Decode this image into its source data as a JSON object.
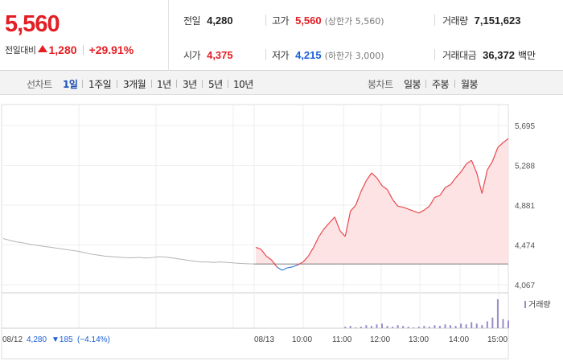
{
  "header": {
    "price": "5,560",
    "change_label": "전일대비",
    "change_value": "1,280",
    "change_rate": "+29.91%",
    "stats": {
      "prev_close": {
        "label": "전일",
        "value": "4,280"
      },
      "high": {
        "label": "고가",
        "value": "5,560",
        "sub": "(상한가 5,560)"
      },
      "volume": {
        "label": "거래량",
        "value": "7,151,623"
      },
      "open": {
        "label": "시가",
        "value": "4,375"
      },
      "low": {
        "label": "저가",
        "value": "4,215",
        "sub": "(하한가 3,000)"
      },
      "amount": {
        "label": "거래대금",
        "value": "36,372",
        "unit": "백만"
      }
    }
  },
  "toolbar": {
    "line_title": "선차트",
    "line_periods": [
      "1일",
      "1주일",
      "3개월",
      "1년",
      "3년",
      "5년",
      "10년"
    ],
    "candle_title": "봉차트",
    "candle_periods": [
      "일봉",
      "주봉",
      "월봉"
    ]
  },
  "chart_data": {
    "type": "area",
    "y_ticks": [
      "5,695",
      "5,288",
      "4,881",
      "4,474",
      "4,067"
    ],
    "ylim": [
      4067,
      5695
    ],
    "prev_close": 4280,
    "prev_day": {
      "date": "08/12",
      "close": "4,280",
      "change": "▼185",
      "rate": "(−4.14%)"
    },
    "x_labels": [
      "08/13",
      "10:00",
      "11:00",
      "12:00",
      "13:00",
      "14:00",
      "15:00"
    ],
    "volume_label": "거래량",
    "colors": {
      "up": "#e8484f",
      "down": "#3f7fd6",
      "prev": "#b3b3b3",
      "fill": "#fde3e4",
      "volume": "#9a8cc9"
    },
    "prev_series": [
      4540,
      4520,
      4505,
      4495,
      4480,
      4470,
      4460,
      4450,
      4440,
      4430,
      4420,
      4410,
      4395,
      4380,
      4370,
      4360,
      4355,
      4350,
      4345,
      4342,
      4348,
      4340,
      4345,
      4355,
      4350,
      4340,
      4330,
      4320,
      4310,
      4300,
      4300,
      4295,
      4300,
      4295,
      4290,
      4285,
      4282,
      4280
    ],
    "today_series": [
      4450,
      4430,
      4360,
      4320,
      4250,
      4215,
      4240,
      4250,
      4270,
      4300,
      4360,
      4450,
      4560,
      4640,
      4700,
      4760,
      4620,
      4560,
      4820,
      4880,
      5020,
      5130,
      5210,
      5160,
      5080,
      5040,
      4940,
      4870,
      4860,
      4840,
      4820,
      4800,
      4830,
      4870,
      4960,
      4980,
      5060,
      5090,
      5160,
      5220,
      5300,
      5340,
      5210,
      5000,
      5240,
      5330,
      5470,
      5520,
      5560
    ],
    "volume_series": [
      0,
      0,
      0,
      0,
      0,
      0,
      0,
      0,
      0,
      0,
      0,
      0,
      0,
      0,
      0,
      0,
      0,
      2,
      3,
      1,
      2,
      4,
      3,
      5,
      6,
      3,
      2,
      4,
      3,
      2,
      1,
      2,
      3,
      2,
      4,
      3,
      5,
      4,
      3,
      6,
      5,
      8,
      6,
      4,
      9,
      14,
      38,
      12,
      10
    ]
  }
}
